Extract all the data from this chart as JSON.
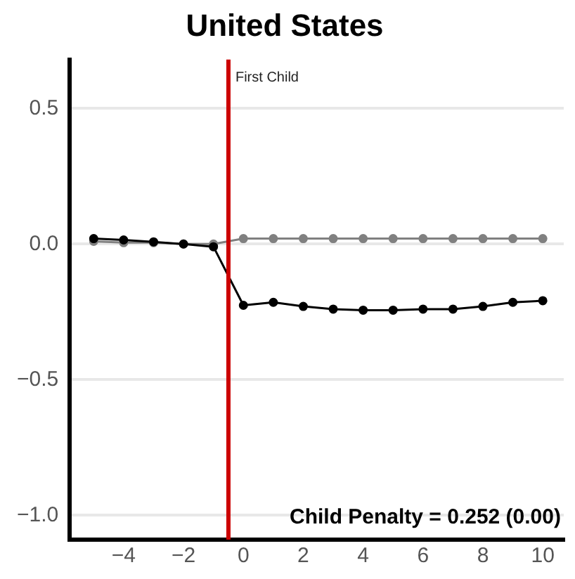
{
  "chart_data": {
    "type": "line",
    "title": "United States",
    "x": [
      -5,
      -4,
      -3,
      -2,
      -1,
      0,
      1,
      2,
      3,
      4,
      5,
      6,
      7,
      8,
      9,
      10
    ],
    "series": [
      {
        "color": "#808080",
        "marker": "circle",
        "values": [
          0.01,
          0.005,
          0.005,
          0.0,
          0.0,
          0.02,
          0.02,
          0.02,
          0.02,
          0.02,
          0.02,
          0.02,
          0.02,
          0.02,
          0.02,
          0.02
        ]
      },
      {
        "color": "#000000",
        "marker": "circle",
        "values": [
          0.02,
          0.015,
          0.008,
          0.0,
          -0.01,
          -0.226,
          -0.215,
          -0.23,
          -0.24,
          -0.244,
          -0.244,
          -0.24,
          -0.24,
          -0.23,
          -0.215,
          -0.209
        ]
      }
    ],
    "xlim": [
      -5.8,
      10.7
    ],
    "xticks": [
      -4,
      -2,
      0,
      2,
      4,
      6,
      8,
      10
    ],
    "ylim": [
      -1.09,
      0.68
    ],
    "yticks": [
      {
        "value": -1,
        "label": "−1.0"
      },
      {
        "value": -0.5,
        "label": "−0.5"
      },
      {
        "value": 0,
        "label": "0.0"
      },
      {
        "value": 0.5,
        "label": "0.5"
      }
    ],
    "grid": "y",
    "legend": false,
    "ref_lines": [
      {
        "axis": "x",
        "value": -0.5,
        "label": "First Child",
        "color": "#cc0000"
      }
    ],
    "annotations": [
      "Child Penalty = 0.252 (0.00)"
    ]
  }
}
